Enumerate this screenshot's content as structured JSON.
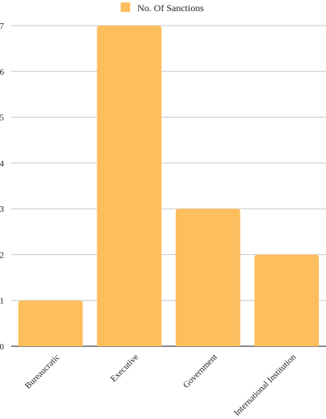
{
  "chart_data": {
    "type": "bar",
    "categories": [
      "Bureaucratic",
      "Executive",
      "Government",
      "International Institution"
    ],
    "series": [
      {
        "name": "No. Of Sanctions",
        "values": [
          1,
          7,
          3,
          2
        ],
        "color": "#FDBF5E"
      }
    ],
    "ylim": [
      0,
      7
    ],
    "yticks": [
      0,
      1,
      2,
      3,
      4,
      5,
      6,
      7
    ],
    "grid": true,
    "legend_position": "top-center",
    "xlabel": "",
    "ylabel": ""
  }
}
